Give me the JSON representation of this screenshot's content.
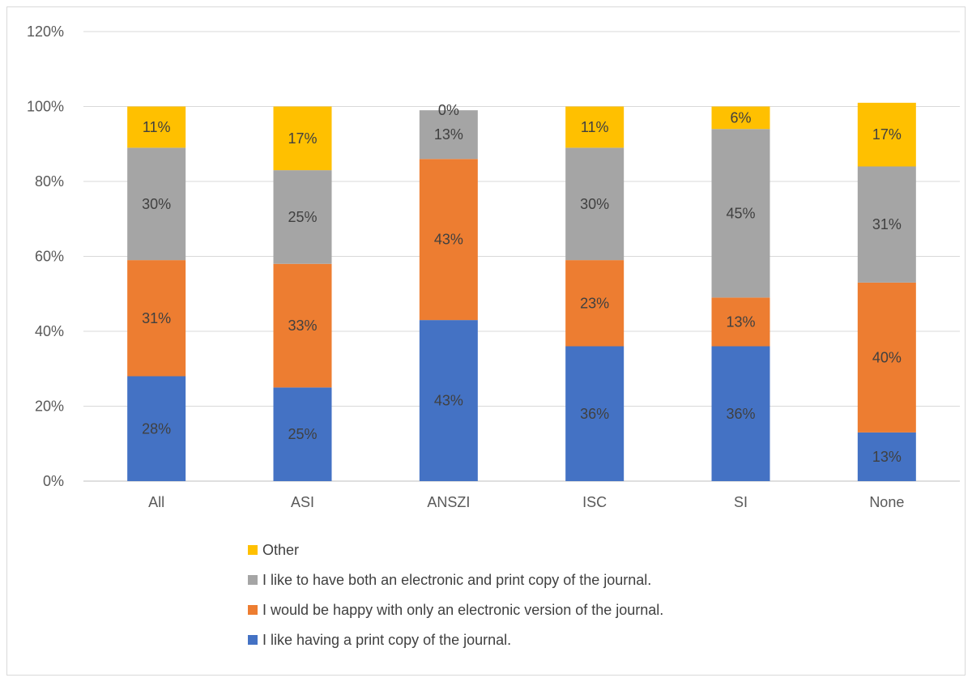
{
  "chart_data": {
    "type": "bar",
    "stacked": true,
    "title": "",
    "xlabel": "",
    "ylabel": "",
    "categories": [
      "All",
      "ASI",
      "ANSZI",
      "ISC",
      "SI",
      "None"
    ],
    "ylim": [
      0,
      120
    ],
    "yticks": [
      "0%",
      "20%",
      "40%",
      "60%",
      "80%",
      "100%",
      "120%"
    ],
    "grid": true,
    "legend_position": "bottom",
    "series": [
      {
        "name": "I like having a print copy of the journal.",
        "color": "#4472C4",
        "values": [
          28,
          25,
          43,
          36,
          36,
          13
        ],
        "labels": [
          "28%",
          "25%",
          "43%",
          "36%",
          "36%",
          "13%"
        ]
      },
      {
        "name": "I would be happy with only an electronic version of the journal.",
        "color": "#ED7D31",
        "values": [
          31,
          33,
          43,
          23,
          13,
          40
        ],
        "labels": [
          "31%",
          "33%",
          "43%",
          "23%",
          "13%",
          "40%"
        ]
      },
      {
        "name": "I like to have both an electronic and print copy of the journal.",
        "color": "#A5A5A5",
        "values": [
          30,
          25,
          13,
          30,
          45,
          31
        ],
        "labels": [
          "30%",
          "25%",
          "13%",
          "30%",
          "45%",
          "31%"
        ]
      },
      {
        "name": "Other",
        "color": "#FFC000",
        "values": [
          11,
          17,
          0,
          11,
          6,
          17
        ],
        "labels": [
          "11%",
          "17%",
          "0%",
          "11%",
          "6%",
          "17%"
        ]
      }
    ],
    "legend_order": [
      3,
      2,
      1,
      0
    ]
  }
}
